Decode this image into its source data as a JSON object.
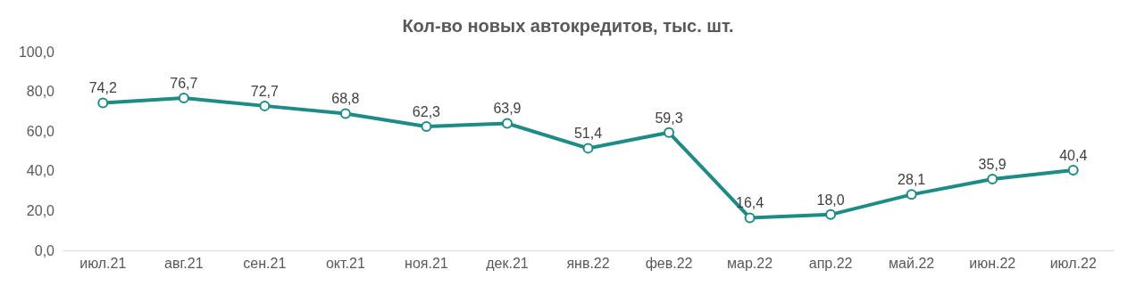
{
  "chart_data": {
    "type": "line",
    "title": "Кол-во новых автокредитов, тыс. шт.",
    "categories": [
      "июл.21",
      "авг.21",
      "сен.21",
      "окт.21",
      "ноя.21",
      "дек.21",
      "янв.22",
      "фев.22",
      "мар.22",
      "апр.22",
      "май.22",
      "июн.22",
      "июл.22"
    ],
    "series": [
      {
        "color": "#1c8c84",
        "values": [
          74.2,
          76.7,
          72.7,
          68.8,
          62.3,
          63.9,
          51.4,
          59.3,
          16.4,
          18.0,
          28.1,
          35.9,
          40.4
        ],
        "value_labels": [
          "74,2",
          "76,7",
          "72,7",
          "68,8",
          "62,3",
          "63,9",
          "51,4",
          "59,3",
          "16,4",
          "18,0",
          "28,1",
          "35,9",
          "40,4"
        ]
      }
    ],
    "ylim": [
      0,
      100
    ],
    "yticks": [
      {
        "value": 0,
        "label": "0,0"
      },
      {
        "value": 20,
        "label": "20,0"
      },
      {
        "value": 40,
        "label": "40,0"
      },
      {
        "value": 60,
        "label": "60,0"
      },
      {
        "value": 80,
        "label": "80,0"
      },
      {
        "value": 100,
        "label": "100,0"
      }
    ],
    "grid": false,
    "legend": false,
    "marker": "circle",
    "line_style": "solid"
  }
}
